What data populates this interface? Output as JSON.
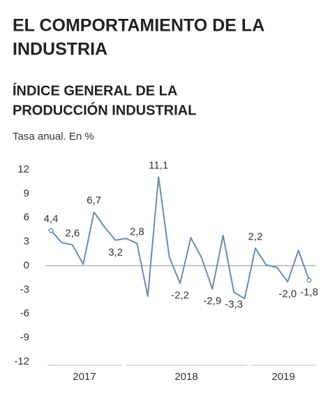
{
  "chart_data": {
    "type": "line",
    "title": [
      "EL COMPORTAMIENTO DE LA",
      "INDUSTRIA"
    ],
    "subtitle": [
      "ÍNDICE GENERAL DE LA",
      "PRODUCCIÓN INDUSTRIAL"
    ],
    "y_label": "Tasa anual. En %",
    "categories": [
      null,
      null,
      null,
      null,
      null,
      null,
      null,
      null,
      null,
      null,
      null,
      null,
      null,
      null,
      null,
      null,
      null,
      null,
      null,
      null,
      null,
      null,
      null,
      null,
      null
    ],
    "years": [
      "2017",
      "2018",
      "2019"
    ],
    "values": [
      4.4,
      2.9,
      2.6,
      0.2,
      6.7,
      4.8,
      3.2,
      3.4,
      2.8,
      -3.8,
      11.1,
      1.1,
      -2.2,
      3.5,
      1.0,
      -2.9,
      3.8,
      -3.3,
      -4.1,
      2.2,
      0.1,
      -0.2,
      -2.0,
      1.9,
      -1.8
    ],
    "value_labels": [
      "4,4",
      null,
      "2,6",
      null,
      "6,7",
      null,
      "3,2",
      null,
      "2,8",
      null,
      "11,1",
      null,
      "-2,2",
      null,
      null,
      "-2,9",
      null,
      "-3,3",
      null,
      "2,2",
      null,
      null,
      "-2,0",
      null,
      "-1,8"
    ],
    "color": "#6b8cae",
    "ylim": [
      -12,
      12
    ],
    "yticks": [
      12,
      9,
      6,
      3,
      0,
      -3,
      -6,
      -9,
      -12
    ]
  }
}
